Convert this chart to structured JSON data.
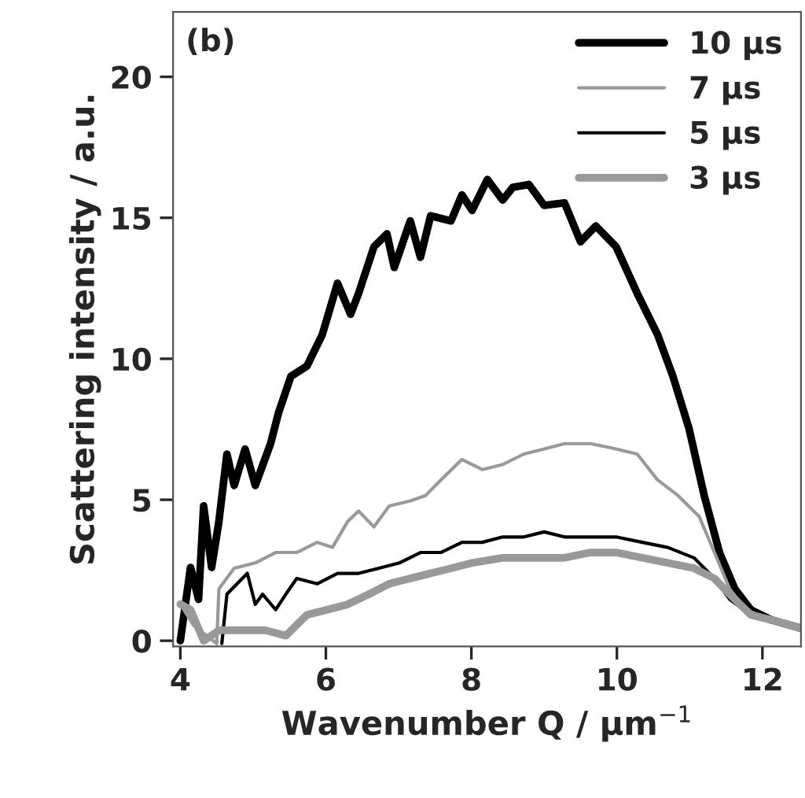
{
  "chart_data": {
    "type": "line",
    "xlabel": "Wavenumber Q / µm$^{−1}$",
    "ylabel": "Scattering intensity / a.u.",
    "annotations": [
      "(b)"
    ],
    "xlim": [
      3.9,
      12.53
    ],
    "ylim": [
      -0.2,
      22.3
    ],
    "xticks": [
      4,
      6,
      8,
      10,
      12
    ],
    "yticks": [
      0,
      5,
      10,
      15,
      20
    ],
    "grid": false,
    "legend": "top right",
    "marker": "none",
    "line_style": "solid",
    "series": [
      {
        "name": "10 µs",
        "color": "#000000",
        "x": [
          4.0,
          4.14,
          4.25,
          4.32,
          4.43,
          4.53,
          4.64,
          4.74,
          4.89,
          5.03,
          5.24,
          5.35,
          5.52,
          5.74,
          5.95,
          6.16,
          6.34,
          6.45,
          6.66,
          6.84,
          6.94,
          7.16,
          7.3,
          7.44,
          7.72,
          7.87,
          8.01,
          8.22,
          8.43,
          8.57,
          8.79,
          9.0,
          9.28,
          9.5,
          9.71,
          9.99,
          10.28,
          10.56,
          10.77,
          10.99,
          11.2,
          11.41,
          11.62,
          11.84,
          12.12,
          12.51
        ],
        "values": [
          0,
          2.6,
          1.47,
          4.78,
          2.6,
          4.23,
          6.62,
          5.51,
          6.8,
          5.51,
          6.99,
          8.09,
          9.38,
          9.74,
          10.85,
          12.68,
          11.58,
          12.32,
          13.97,
          14.43,
          13.24,
          14.89,
          13.6,
          15.07,
          14.89,
          15.81,
          15.26,
          16.36,
          15.63,
          16.08,
          16.18,
          15.44,
          15.53,
          14.15,
          14.71,
          13.97,
          12.32,
          10.85,
          9.38,
          7.54,
          5.15,
          3.13,
          1.84,
          1.1,
          0.74,
          0.46
        ]
      },
      {
        "name": "7 µs",
        "color": "#999999",
        "x": [
          4.0,
          4.18,
          4.5,
          4.53,
          4.74,
          5.03,
          5.31,
          5.6,
          5.88,
          6.09,
          6.3,
          6.45,
          6.66,
          6.87,
          7.16,
          7.37,
          7.58,
          7.87,
          8.15,
          8.43,
          8.72,
          9.0,
          9.28,
          9.64,
          9.99,
          10.28,
          10.56,
          10.84,
          11.13,
          11.34,
          11.55,
          11.77,
          12.12,
          12.51
        ],
        "values": [
          1.3,
          0.55,
          -0.1,
          1.84,
          2.57,
          2.76,
          3.13,
          3.13,
          3.49,
          3.31,
          4.23,
          4.6,
          4.04,
          4.78,
          4.96,
          5.15,
          5.7,
          6.43,
          6.07,
          6.25,
          6.62,
          6.8,
          6.99,
          6.99,
          6.8,
          6.62,
          5.7,
          5.15,
          4.41,
          3.13,
          1.84,
          1.1,
          0.74,
          0.46
        ]
      },
      {
        "name": "5 µs",
        "color": "#000000",
        "x": [
          4.57,
          4.64,
          4.78,
          4.92,
          5.03,
          5.13,
          5.31,
          5.45,
          5.6,
          5.88,
          6.16,
          6.45,
          6.73,
          7.01,
          7.3,
          7.58,
          7.87,
          8.15,
          8.43,
          8.72,
          9.0,
          9.28,
          9.64,
          9.99,
          10.35,
          10.7,
          11.06,
          11.34,
          11.55,
          11.84,
          12.12,
          12.51
        ],
        "values": [
          -0.1,
          1.65,
          2.02,
          2.39,
          1.29,
          1.65,
          1.1,
          1.65,
          2.21,
          2.02,
          2.39,
          2.39,
          2.57,
          2.76,
          3.13,
          3.13,
          3.49,
          3.49,
          3.68,
          3.68,
          3.86,
          3.68,
          3.68,
          3.68,
          3.49,
          3.31,
          2.94,
          2.21,
          1.47,
          0.92,
          0.74,
          0.46
        ]
      },
      {
        "name": "3 µs",
        "color": "#999999",
        "x": [
          4.0,
          4.14,
          4.32,
          4.53,
          4.89,
          5.17,
          5.45,
          5.74,
          6.02,
          6.3,
          6.59,
          6.87,
          7.16,
          7.44,
          7.72,
          8.01,
          8.43,
          8.72,
          9.0,
          9.28,
          9.64,
          9.99,
          10.35,
          10.7,
          11.06,
          11.34,
          11.55,
          11.84,
          12.12,
          12.51
        ],
        "values": [
          1.3,
          1.1,
          0,
          0.37,
          0.37,
          0.37,
          0.18,
          0.92,
          1.1,
          1.29,
          1.65,
          2.02,
          2.21,
          2.39,
          2.57,
          2.76,
          2.94,
          2.94,
          2.94,
          2.94,
          3.13,
          3.13,
          2.94,
          2.76,
          2.57,
          2.21,
          1.65,
          0.92,
          0.74,
          0.46
        ]
      }
    ]
  }
}
